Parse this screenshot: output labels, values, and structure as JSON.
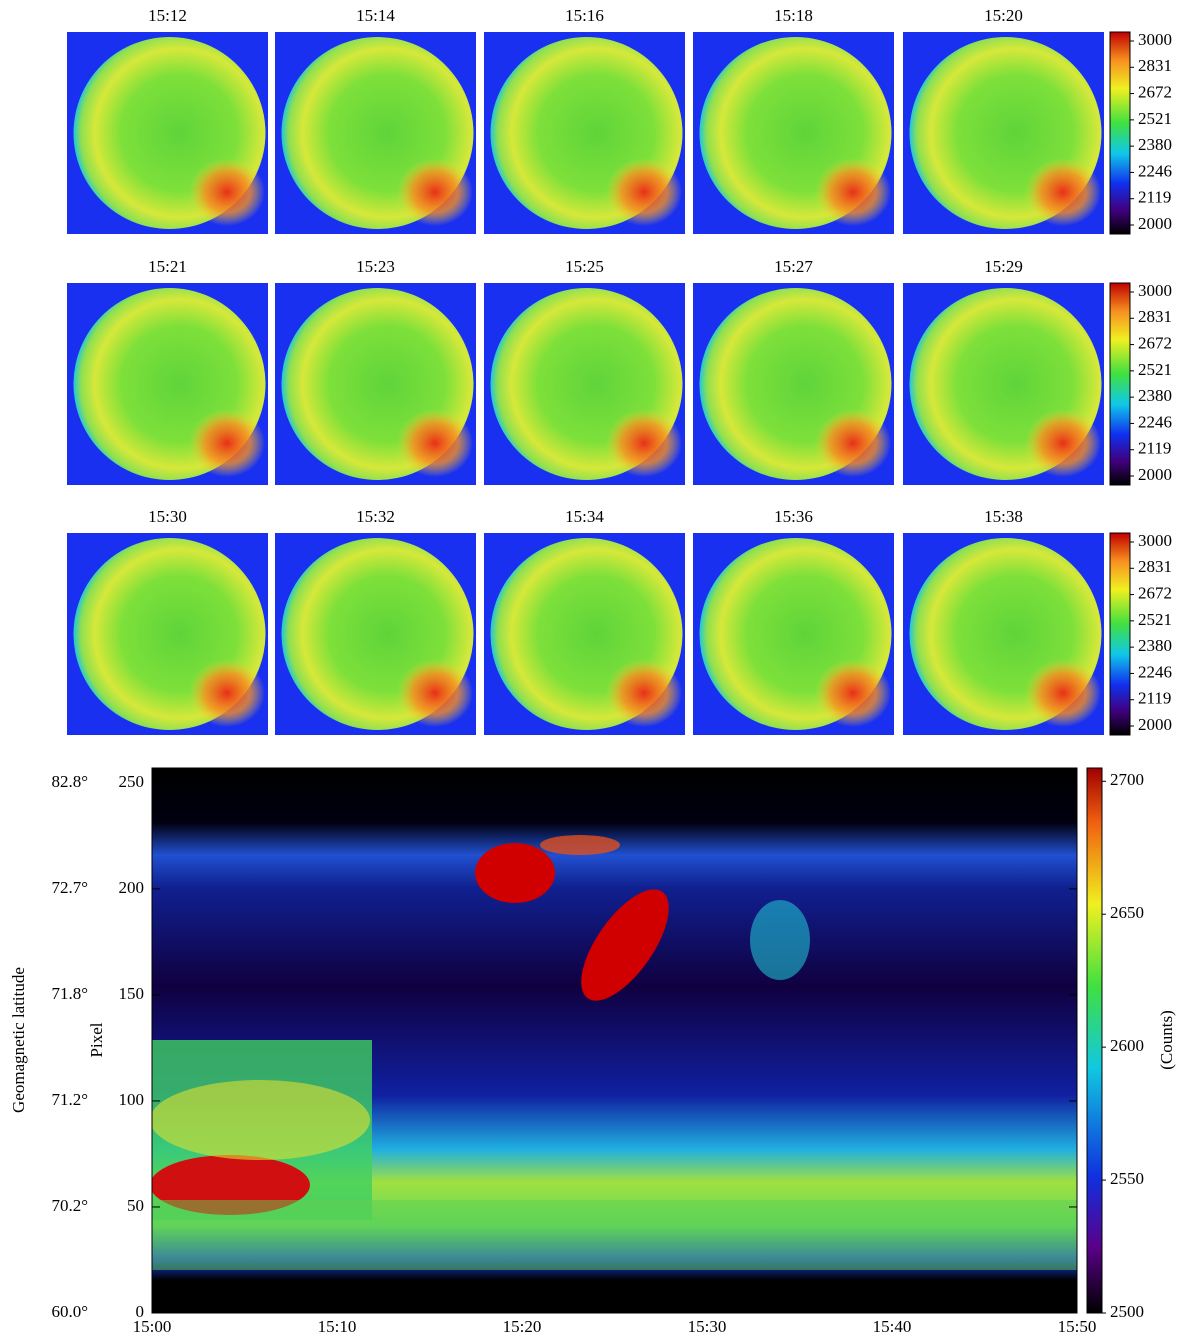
{
  "chart_data": [
    {
      "type": "image-grid",
      "titles": [
        "15:12",
        "15:14",
        "15:16",
        "15:18",
        "15:20",
        "15:21",
        "15:23",
        "15:25",
        "15:27",
        "15:29",
        "15:30",
        "15:32",
        "15:34",
        "15:36",
        "15:38"
      ],
      "columns": 5,
      "colorbar_ticks": [
        3000,
        2831,
        2672,
        2521,
        2380,
        2246,
        2119,
        2000
      ]
    },
    {
      "type": "heatmap",
      "x": [
        "15:00",
        "15:10",
        "15:20",
        "15:30",
        "15:40",
        "15:50"
      ],
      "ylabel": "Pixel",
      "ylim": [
        0,
        257
      ],
      "yticks": [
        0,
        50,
        100,
        150,
        200,
        250
      ],
      "y2label": "Geomagnetic latitude",
      "y2ticklabels": [
        "60.0°",
        "70.2°",
        "71.2°",
        "71.8°",
        "72.7°",
        "82.8°"
      ],
      "colorbar_label": "(Counts)",
      "clim": [
        2500,
        2705
      ],
      "colorbar_ticks": [
        2500,
        2550,
        2600,
        2650,
        2700
      ]
    }
  ]
}
